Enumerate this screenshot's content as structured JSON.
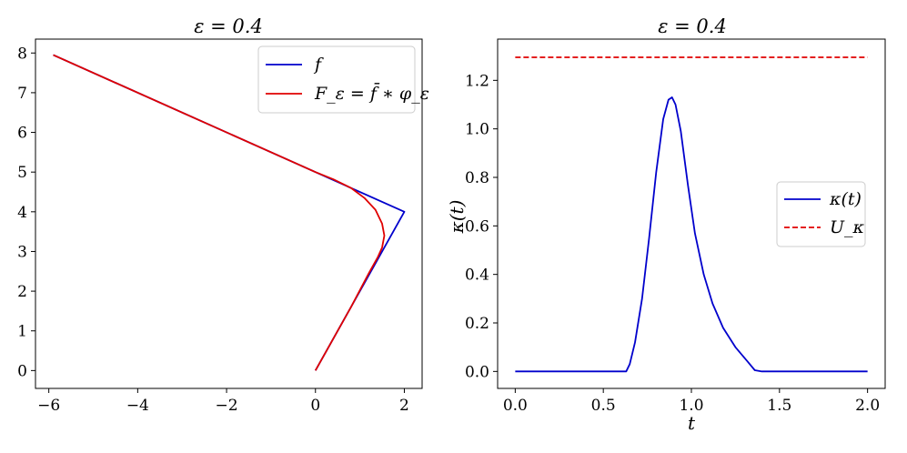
{
  "chart_data": [
    {
      "type": "line",
      "title": "ε = 0.4",
      "xlabel": "",
      "ylabel": "",
      "xlim": [
        -6.3,
        2.4
      ],
      "ylim": [
        -0.45,
        8.35
      ],
      "xticks": [
        -6,
        -4,
        -2,
        0,
        2
      ],
      "yticks": [
        0,
        1,
        2,
        3,
        4,
        5,
        6,
        7,
        8
      ],
      "xtick_labels": [
        "−6",
        "−4",
        "−2",
        "0",
        "2"
      ],
      "ytick_labels": [
        "0",
        "1",
        "2",
        "3",
        "4",
        "5",
        "6",
        "7",
        "8"
      ],
      "legend_position": "top-right",
      "series": [
        {
          "name": "f",
          "color": "#0000cc",
          "points": [
            [
              -5.9,
              7.95
            ],
            [
              0,
              5
            ],
            [
              2,
              4
            ],
            [
              0,
              0
            ]
          ]
        },
        {
          "name": "F_ε = f̄ ∗ φ_ε",
          "color": "#e00000",
          "points": [
            [
              -5.9,
              7.95
            ],
            [
              -0.4,
              5.2
            ],
            [
              0,
              5
            ],
            [
              0.4,
              4.82
            ],
            [
              0.8,
              4.6
            ],
            [
              1.1,
              4.35
            ],
            [
              1.35,
              4.05
            ],
            [
              1.5,
              3.7
            ],
            [
              1.55,
              3.4
            ],
            [
              1.5,
              3.1
            ],
            [
              1.4,
              2.85
            ],
            [
              1.2,
              2.45
            ],
            [
              0.8,
              1.6
            ],
            [
              0.4,
              0.8
            ],
            [
              0,
              0
            ]
          ]
        }
      ]
    },
    {
      "type": "line",
      "title": "ε = 0.4",
      "xlabel": "t",
      "ylabel": "κ(t)",
      "xlim": [
        -0.1,
        2.1
      ],
      "ylim": [
        -0.07,
        1.37
      ],
      "xticks": [
        0,
        0.5,
        1,
        1.5,
        2
      ],
      "yticks": [
        0,
        0.2,
        0.4,
        0.6,
        0.8,
        1.0,
        1.2
      ],
      "xtick_labels": [
        "0.0",
        "0.5",
        "1.0",
        "1.5",
        "2.0"
      ],
      "ytick_labels": [
        "0.0",
        "0.2",
        "0.4",
        "0.6",
        "0.8",
        "1.0",
        "1.2"
      ],
      "legend_position": "center-right",
      "series": [
        {
          "name": "κ(t)",
          "color": "#0000cc",
          "points": [
            [
              0,
              0
            ],
            [
              0.63,
              0
            ],
            [
              0.65,
              0.03
            ],
            [
              0.68,
              0.12
            ],
            [
              0.72,
              0.3
            ],
            [
              0.76,
              0.55
            ],
            [
              0.8,
              0.82
            ],
            [
              0.84,
              1.04
            ],
            [
              0.87,
              1.12
            ],
            [
              0.89,
              1.13
            ],
            [
              0.91,
              1.1
            ],
            [
              0.94,
              0.99
            ],
            [
              0.98,
              0.77
            ],
            [
              1.02,
              0.57
            ],
            [
              1.07,
              0.4
            ],
            [
              1.12,
              0.28
            ],
            [
              1.18,
              0.18
            ],
            [
              1.25,
              0.1
            ],
            [
              1.32,
              0.04
            ],
            [
              1.36,
              0.005
            ],
            [
              1.4,
              0
            ],
            [
              2.0,
              0
            ]
          ]
        },
        {
          "name": "U_κ",
          "color": "#e00000",
          "dashed": true,
          "points": [
            [
              0,
              1.295
            ],
            [
              2.0,
              1.295
            ]
          ]
        }
      ]
    }
  ]
}
